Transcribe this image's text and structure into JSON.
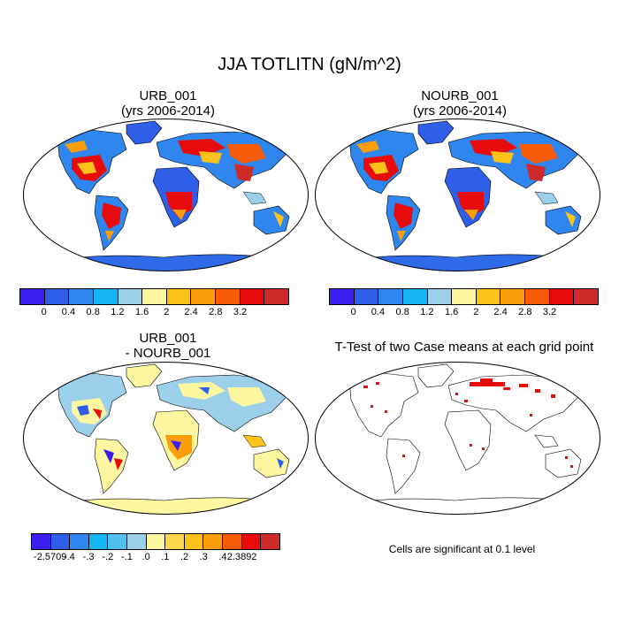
{
  "title": "JJA TOTLITN (gN/m^2)",
  "panels": [
    {
      "title_line1": "URB_001",
      "title_line2": "(yrs 2006-2014)"
    },
    {
      "title_line1": "NOURB_001",
      "title_line2": "(yrs 2006-2014)"
    },
    {
      "title_line1": "URB_001",
      "title_line2": "- NOURB_001"
    },
    {
      "title_line1": "T-Test of two Case means at each grid point",
      "title_line2": ""
    }
  ],
  "colorbar_abs": {
    "colors": [
      "#3b1ff0",
      "#2f5ee8",
      "#2f86ee",
      "#15b5f2",
      "#9ccfea",
      "#fdf6a0",
      "#fbc31a",
      "#fb9d08",
      "#f85b08",
      "#e80b0b",
      "#ce2a2a"
    ],
    "labels": [
      "0",
      "0.4",
      "0.8",
      "1.2",
      "1.6",
      "2",
      "2.4",
      "2.8",
      "3.2"
    ]
  },
  "colorbar_diff": {
    "colors": [
      "#3b1ff0",
      "#2f5ee8",
      "#2f86ee",
      "#15b5f2",
      "#50c0f0",
      "#9ccfea",
      "#fdf6a0",
      "#fcd84a",
      "#fbc31a",
      "#fb9d08",
      "#f85b08",
      "#e80b0b",
      "#ce2a2a"
    ],
    "labels": [
      "-2.5709",
      "-.4",
      "-.3",
      "-.2",
      "-.1",
      ".0",
      ".1",
      ".2",
      ".3",
      ".4",
      "2.3892"
    ]
  },
  "significance_note": "Cells are significant at 0.1 level"
}
